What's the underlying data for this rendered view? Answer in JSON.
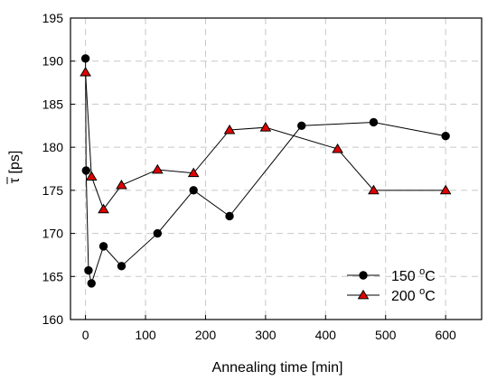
{
  "chart_data": {
    "type": "line",
    "title": "",
    "xlabel": "Annealing time [min]",
    "ylabel": "τ [ps]",
    "ylabel_overline": true,
    "xlim": [
      -25,
      660
    ],
    "ylim": [
      160,
      195
    ],
    "x_ticks": [
      0,
      100,
      200,
      300,
      400,
      500,
      600
    ],
    "y_ticks": [
      160,
      165,
      170,
      175,
      180,
      185,
      190,
      195
    ],
    "grid": true,
    "legend_position": "bottom-right",
    "series": [
      {
        "name": "150 °C",
        "name_base": "150 ",
        "name_sup": "o",
        "name_unit": "C",
        "marker": "circle",
        "color": "#000000",
        "x": [
          0,
          1,
          5,
          10,
          30,
          60,
          120,
          180,
          240,
          360,
          480,
          600
        ],
        "y": [
          190.3,
          177.3,
          165.7,
          164.2,
          168.5,
          166.2,
          170.0,
          175.0,
          172.0,
          182.5,
          182.9,
          181.3
        ]
      },
      {
        "name": "200 °C",
        "name_base": "200 ",
        "name_sup": "o",
        "name_unit": "C",
        "marker": "triangle",
        "color": "#e00000",
        "x": [
          0,
          10,
          30,
          60,
          120,
          180,
          240,
          300,
          420,
          480,
          600
        ],
        "y": [
          188.7,
          176.6,
          172.8,
          175.6,
          177.4,
          177.0,
          182.0,
          182.3,
          179.8,
          175.0,
          175.0
        ]
      }
    ]
  }
}
